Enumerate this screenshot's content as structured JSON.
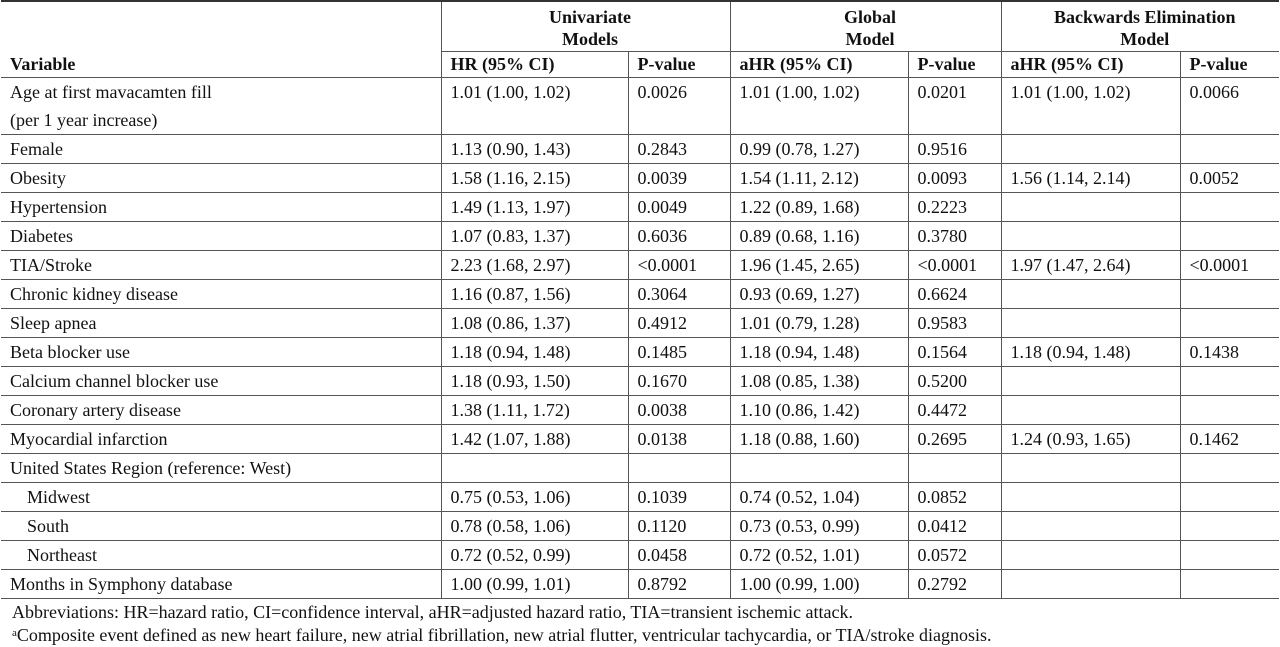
{
  "headers": {
    "group": [
      "Univariate Models",
      "Global Model",
      "Backwards Elimination Model"
    ],
    "group_lines": [
      [
        "Univariate",
        "Models"
      ],
      [
        "Global",
        "Model"
      ],
      [
        "Backwards Elimination",
        "Model"
      ]
    ],
    "columns": [
      "Variable",
      "HR (95% CI)",
      "P-value",
      "aHR (95% CI)",
      "P-value",
      "aHR (95% CI)",
      "P-value"
    ]
  },
  "rows": [
    {
      "variable": "Age at first mavacamten fill",
      "variable2": "(per 1 year increase)",
      "uni_hr": "1.01 (1.00, 1.02)",
      "uni_p": "0.0026",
      "glob_hr": "1.01 (1.00, 1.02)",
      "glob_p": "0.0201",
      "be_hr": "1.01 (1.00, 1.02)",
      "be_p": "0.0066"
    },
    {
      "variable": "Female",
      "uni_hr": "1.13 (0.90, 1.43)",
      "uni_p": "0.2843",
      "glob_hr": "0.99 (0.78, 1.27)",
      "glob_p": "0.9516",
      "be_hr": "",
      "be_p": ""
    },
    {
      "variable": "Obesity",
      "uni_hr": "1.58 (1.16, 2.15)",
      "uni_p": "0.0039",
      "glob_hr": "1.54 (1.11, 2.12)",
      "glob_p": "0.0093",
      "be_hr": "1.56 (1.14, 2.14)",
      "be_p": "0.0052"
    },
    {
      "variable": "Hypertension",
      "uni_hr": "1.49 (1.13, 1.97)",
      "uni_p": "0.0049",
      "glob_hr": "1.22 (0.89, 1.68)",
      "glob_p": "0.2223",
      "be_hr": "",
      "be_p": ""
    },
    {
      "variable": "Diabetes",
      "uni_hr": "1.07 (0.83, 1.37)",
      "uni_p": "0.6036",
      "glob_hr": "0.89 (0.68, 1.16)",
      "glob_p": "0.3780",
      "be_hr": "",
      "be_p": ""
    },
    {
      "variable": "TIA/Stroke",
      "uni_hr": "2.23 (1.68, 2.97)",
      "uni_p": "<0.0001",
      "glob_hr": "1.96 (1.45, 2.65)",
      "glob_p": "<0.0001",
      "be_hr": "1.97 (1.47, 2.64)",
      "be_p": "<0.0001"
    },
    {
      "variable": "Chronic kidney disease",
      "uni_hr": "1.16 (0.87, 1.56)",
      "uni_p": "0.3064",
      "glob_hr": "0.93 (0.69, 1.27)",
      "glob_p": "0.6624",
      "be_hr": "",
      "be_p": ""
    },
    {
      "variable": "Sleep apnea",
      "uni_hr": "1.08 (0.86, 1.37)",
      "uni_p": "0.4912",
      "glob_hr": "1.01 (0.79, 1.28)",
      "glob_p": "0.9583",
      "be_hr": "",
      "be_p": ""
    },
    {
      "variable": "Beta blocker use",
      "uni_hr": "1.18 (0.94, 1.48)",
      "uni_p": "0.1485",
      "glob_hr": "1.18 (0.94, 1.48)",
      "glob_p": "0.1564",
      "be_hr": "1.18 (0.94, 1.48)",
      "be_p": "0.1438"
    },
    {
      "variable": "Calcium channel blocker use",
      "uni_hr": "1.18 (0.93, 1.50)",
      "uni_p": "0.1670",
      "glob_hr": "1.08 (0.85, 1.38)",
      "glob_p": "0.5200",
      "be_hr": "",
      "be_p": ""
    },
    {
      "variable": "Coronary artery disease",
      "uni_hr": "1.38 (1.11, 1.72)",
      "uni_p": "0.0038",
      "glob_hr": "1.10 (0.86, 1.42)",
      "glob_p": "0.4472",
      "be_hr": "",
      "be_p": ""
    },
    {
      "variable": "Myocardial infarction",
      "uni_hr": "1.42 (1.07, 1.88)",
      "uni_p": "0.0138",
      "glob_hr": "1.18 (0.88, 1.60)",
      "glob_p": "0.2695",
      "be_hr": "1.24 (0.93, 1.65)",
      "be_p": "0.1462"
    },
    {
      "variable": "United States Region (reference: West)",
      "uni_hr": "",
      "uni_p": "",
      "glob_hr": "",
      "glob_p": "",
      "be_hr": "",
      "be_p": ""
    },
    {
      "variable": "Midwest",
      "indent": true,
      "uni_hr": "0.75 (0.53, 1.06)",
      "uni_p": "0.1039",
      "glob_hr": "0.74 (0.52, 1.04)",
      "glob_p": "0.0852",
      "be_hr": "",
      "be_p": ""
    },
    {
      "variable": "South",
      "indent": true,
      "uni_hr": "0.78 (0.58, 1.06)",
      "uni_p": "0.1120",
      "glob_hr": "0.73 (0.53, 0.99)",
      "glob_p": "0.0412",
      "be_hr": "",
      "be_p": ""
    },
    {
      "variable": "Northeast",
      "indent": true,
      "uni_hr": "0.72 (0.52, 0.99)",
      "uni_p": "0.0458",
      "glob_hr": "0.72 (0.52, 1.01)",
      "glob_p": "0.0572",
      "be_hr": "",
      "be_p": ""
    },
    {
      "variable": "Months in Symphony database",
      "uni_hr": "1.00 (0.99, 1.01)",
      "uni_p": "0.8792",
      "glob_hr": "1.00 (0.99, 1.00)",
      "glob_p": "0.2792",
      "be_hr": "",
      "be_p": ""
    }
  ],
  "footnotes": {
    "abbreviations": "Abbreviations: HR=hazard ratio, CI=confidence interval, aHR=adjusted hazard ratio, TIA=transient ischemic attack.",
    "marker": "a",
    "composite": "Composite event defined as new heart failure, new atrial fibrillation, new atrial flutter, ventricular tachycardia, or TIA/stroke diagnosis."
  }
}
